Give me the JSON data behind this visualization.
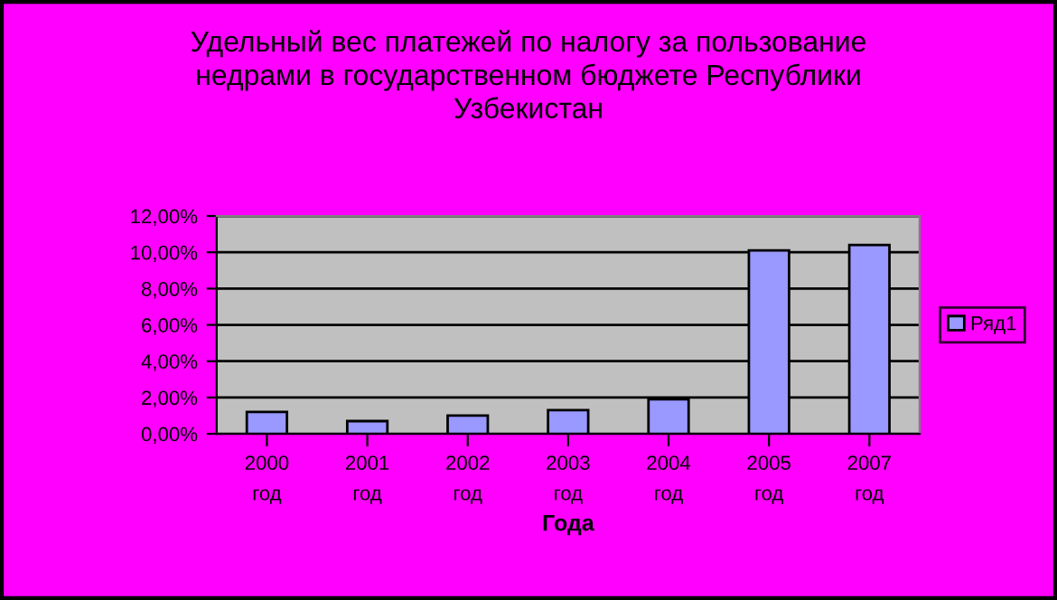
{
  "chart_data": {
    "type": "bar",
    "title": "Удельный вес платежей по налогу за пользование\nнедрами в государственном бюджете Республики\nУзбекистан",
    "xlabel": "Года",
    "categories": [
      "2000\nгод",
      "2001\nгод",
      "2002\nгод",
      "2003\nгод",
      "2004\nгод",
      "2005\nгод",
      "2007\nгод"
    ],
    "series": [
      {
        "name": "Ряд1",
        "color": "#9999ff",
        "values": [
          1.2,
          0.7,
          1.0,
          1.3,
          1.9,
          10.1,
          10.4
        ]
      }
    ],
    "ylim": [
      0,
      12
    ],
    "yticks": [
      {
        "value": 0,
        "label": "0,00%"
      },
      {
        "value": 2,
        "label": "2,00%"
      },
      {
        "value": 4,
        "label": "4,00%"
      },
      {
        "value": 6,
        "label": "6,00%"
      },
      {
        "value": 8,
        "label": "8,00%"
      },
      {
        "value": 10,
        "label": "10,00%"
      },
      {
        "value": 12,
        "label": "12,00%"
      }
    ],
    "grid": "y",
    "legend": "right"
  }
}
